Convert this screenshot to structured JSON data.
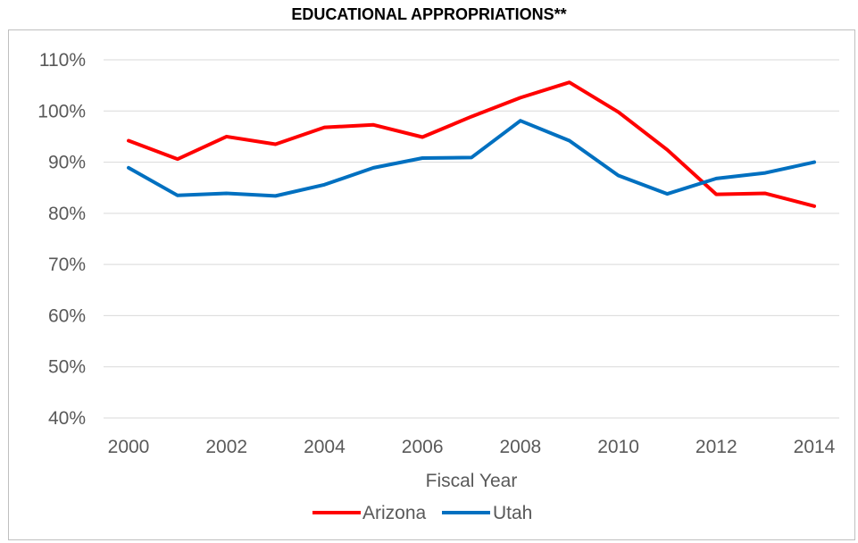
{
  "chart_data": {
    "type": "line",
    "title": "EDUCATIONAL APPROPRIATIONS**",
    "xlabel": "Fiscal Year",
    "ylabel": "",
    "x": [
      2000,
      2001,
      2002,
      2003,
      2004,
      2005,
      2006,
      2007,
      2008,
      2009,
      2010,
      2011,
      2012,
      2013,
      2014
    ],
    "xticks": [
      2000,
      2002,
      2004,
      2006,
      2008,
      2010,
      2012,
      2014
    ],
    "xtick_labels": [
      "2000",
      "2002",
      "2004",
      "2006",
      "2008",
      "2010",
      "2012",
      "2014"
    ],
    "xlim": [
      2000,
      2014
    ],
    "ylim": [
      40,
      110
    ],
    "yticks": [
      40,
      50,
      60,
      70,
      80,
      90,
      100,
      110
    ],
    "ytick_labels": [
      "40%",
      "50%",
      "60%",
      "70%",
      "80%",
      "90%",
      "100%",
      "110%"
    ],
    "grid": true,
    "legend_position": "bottom",
    "series": [
      {
        "name": "Arizona",
        "color": "#ff0000",
        "values": [
          94.2,
          90.6,
          95.0,
          93.5,
          96.8,
          97.3,
          94.9,
          98.9,
          102.6,
          105.6,
          99.8,
          92.4,
          83.7,
          83.9,
          81.4
        ]
      },
      {
        "name": "Utah",
        "color": "#0070c0",
        "values": [
          88.9,
          83.5,
          83.9,
          83.4,
          85.6,
          88.9,
          90.8,
          90.9,
          98.1,
          94.2,
          87.4,
          83.8,
          86.8,
          87.9,
          90.0
        ]
      }
    ]
  }
}
